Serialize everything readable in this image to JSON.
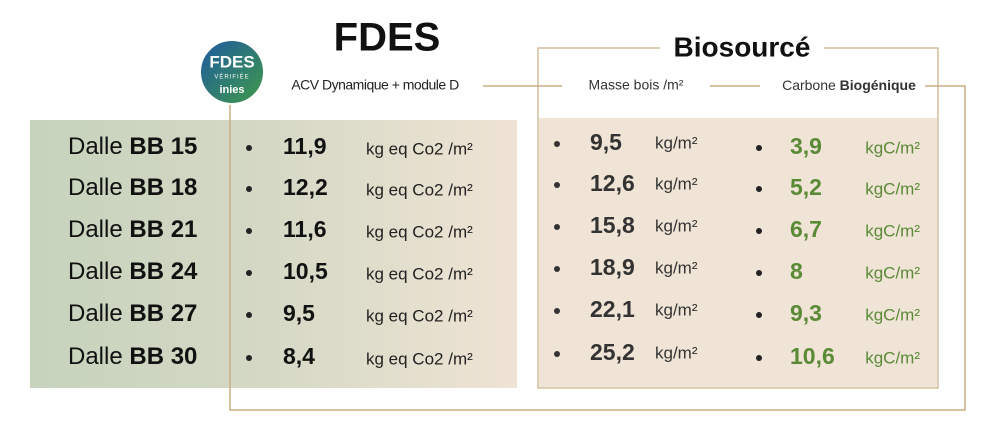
{
  "fdes": {
    "title": "FDES",
    "badge": {
      "top": "FDES",
      "sub": "VÉRIFIÉE",
      "brand": "inies"
    },
    "subtitle": "ACV Dynamique + module D"
  },
  "biosource": {
    "title": "Biosourcé",
    "mass_header": "Masse bois /m²",
    "carbon_header": {
      "plain": "Carbone",
      "bold": "Biogénique"
    }
  },
  "rows": [
    {
      "name": "Dalle",
      "code": "BB 15",
      "fdes": "11,9",
      "fdes_unit": "kg eq Co2 /m²",
      "mass": "9,5",
      "mass_unit": "kg/m²",
      "carbon": "3,9",
      "carbon_unit": "kgC/m²"
    },
    {
      "name": "Dalle",
      "code": "BB 18",
      "fdes": "12,2",
      "fdes_unit": "kg eq Co2 /m²",
      "mass": "12,6",
      "mass_unit": "kg/m²",
      "carbon": "5,2",
      "carbon_unit": "kgC/m²"
    },
    {
      "name": "Dalle",
      "code": "BB 21",
      "fdes": "11,6",
      "fdes_unit": "kg eq Co2 /m²",
      "mass": "15,8",
      "mass_unit": "kg/m²",
      "carbon": "6,7",
      "carbon_unit": "kgC/m²"
    },
    {
      "name": "Dalle",
      "code": "BB 24",
      "fdes": "10,5",
      "fdes_unit": "kg eq Co2 /m²",
      "mass": "18,9",
      "mass_unit": "kg/m²",
      "carbon": "8",
      "carbon_unit": "kgC/m²"
    },
    {
      "name": "Dalle",
      "code": "BB 27",
      "fdes": "9,5",
      "fdes_unit": "kg eq Co2 /m²",
      "mass": "22,1",
      "mass_unit": "kg/m²",
      "carbon": "9,3",
      "carbon_unit": "kgC/m²"
    },
    {
      "name": "Dalle",
      "code": "BB 30",
      "fdes": "8,4",
      "fdes_unit": "kg eq Co2 /m²",
      "mass": "25,2",
      "mass_unit": "kg/m²",
      "carbon": "10,6",
      "carbon_unit": "kgC/m²"
    }
  ]
}
